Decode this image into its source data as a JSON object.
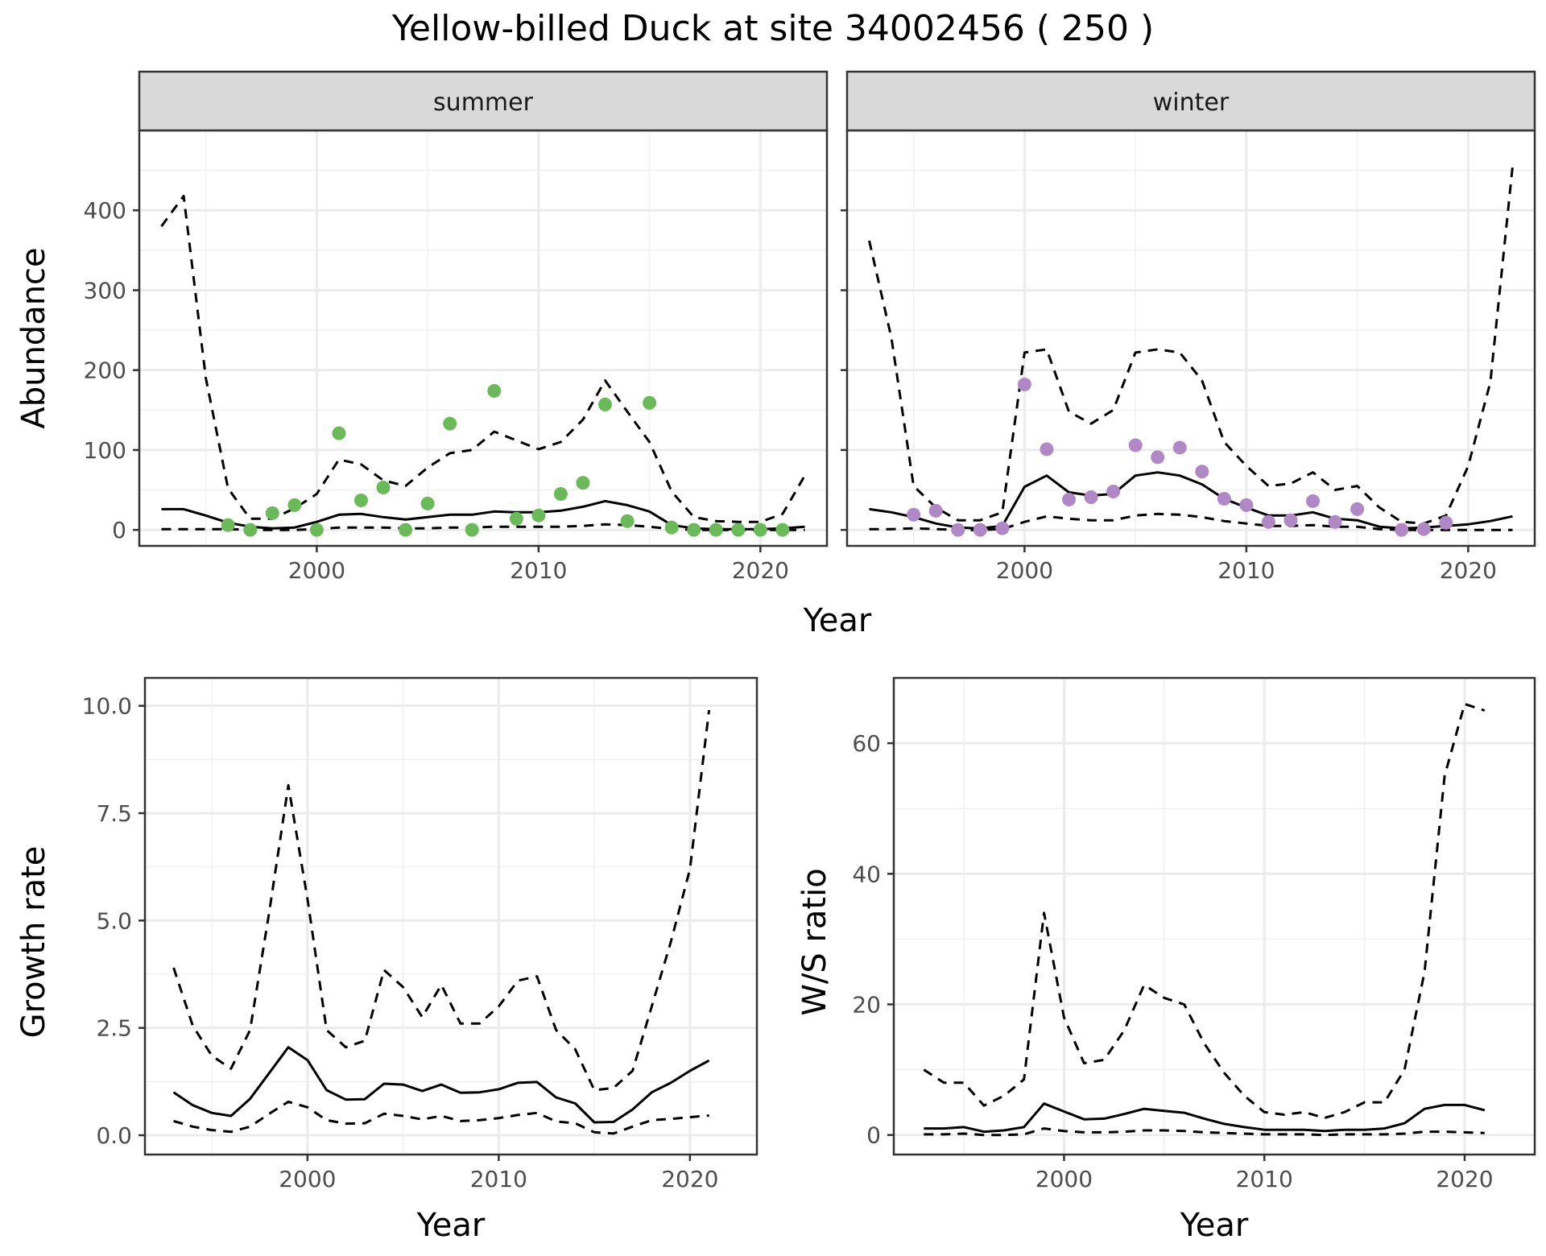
{
  "title": "Yellow-billed Duck at site 34002456 ( 250 )",
  "colors": {
    "summer": "#6aba5a",
    "winter": "#b088c6",
    "line": "#000000"
  },
  "chart_data": [
    {
      "type": "line",
      "panel": "summer",
      "facet_label": "summer",
      "xlabel": "Year",
      "ylabel": "Abundance",
      "xlim": [
        1992,
        2023
      ],
      "ylim": [
        -20,
        500
      ],
      "x_ticks": [
        2000,
        2010,
        2020
      ],
      "x_tick_labels": [
        "2000",
        "2010",
        "2020"
      ],
      "y_ticks": [
        0,
        100,
        200,
        300,
        400
      ],
      "y_tick_labels": [
        "0",
        "100",
        "200",
        "300",
        "400"
      ],
      "series": [
        {
          "name": "fit",
          "style": "solid",
          "x": [
            1993,
            1994,
            1995,
            1996,
            1997,
            1998,
            1999,
            2000,
            2001,
            2002,
            2003,
            2004,
            2005,
            2006,
            2007,
            2008,
            2009,
            2010,
            2011,
            2012,
            2013,
            2014,
            2015,
            2016,
            2017,
            2018,
            2019,
            2020,
            2021,
            2022
          ],
          "y": [
            26,
            26,
            18,
            9,
            4,
            2,
            3,
            10,
            19,
            20,
            16,
            13,
            16,
            19,
            19,
            23,
            22,
            22,
            24,
            29,
            36,
            31,
            23,
            6,
            2,
            1,
            1,
            1,
            2,
            4
          ]
        },
        {
          "name": "upper",
          "style": "dashed",
          "x": [
            1993,
            1994,
            1995,
            1996,
            1997,
            1998,
            1999,
            2000,
            2001,
            2002,
            2003,
            2004,
            2005,
            2006,
            2007,
            2008,
            2009,
            2010,
            2011,
            2012,
            2013,
            2014,
            2015,
            2016,
            2017,
            2018,
            2019,
            2020,
            2021,
            2022
          ],
          "y": [
            380,
            418,
            190,
            52,
            14,
            14,
            27,
            45,
            88,
            82,
            62,
            55,
            78,
            96,
            100,
            123,
            112,
            101,
            110,
            138,
            187,
            148,
            110,
            48,
            16,
            11,
            10,
            10,
            20,
            68
          ]
        },
        {
          "name": "lower",
          "style": "dashed",
          "x": [
            1993,
            1994,
            1995,
            1996,
            1997,
            1998,
            1999,
            2000,
            2001,
            2002,
            2003,
            2004,
            2005,
            2006,
            2007,
            2008,
            2009,
            2010,
            2011,
            2012,
            2013,
            2014,
            2015,
            2016,
            2017,
            2018,
            2019,
            2020,
            2021,
            2022
          ],
          "y": [
            1,
            1,
            1,
            1,
            0,
            0,
            0,
            1,
            3,
            3,
            3,
            2,
            2,
            3,
            3,
            4,
            4,
            4,
            4,
            5,
            7,
            6,
            4,
            1,
            0,
            0,
            0,
            0,
            0,
            0
          ]
        },
        {
          "name": "observed",
          "style": "points",
          "color": "#6aba5a",
          "x": [
            1996,
            1997,
            1998,
            1999,
            2000,
            2001,
            2002,
            2003,
            2004,
            2005,
            2006,
            2007,
            2008,
            2009,
            2010,
            2011,
            2012,
            2013,
            2014,
            2015,
            2016,
            2017,
            2018,
            2019,
            2020,
            2021
          ],
          "y": [
            6,
            0,
            21,
            31,
            0,
            121,
            37,
            53,
            0,
            33,
            133,
            0,
            174,
            14,
            18,
            45,
            59,
            157,
            11,
            159,
            3,
            0,
            0,
            0,
            0,
            0
          ]
        }
      ]
    },
    {
      "type": "line",
      "panel": "winter",
      "facet_label": "winter",
      "xlabel": "Year",
      "ylabel": "Abundance",
      "xlim": [
        1992,
        2023
      ],
      "ylim": [
        -20,
        500
      ],
      "x_ticks": [
        2000,
        2010,
        2020
      ],
      "x_tick_labels": [
        "2000",
        "2010",
        "2020"
      ],
      "y_ticks": [
        0,
        100,
        200,
        300,
        400
      ],
      "y_tick_labels": [],
      "series": [
        {
          "name": "fit",
          "style": "solid",
          "x": [
            1993,
            1994,
            1995,
            1996,
            1997,
            1998,
            1999,
            2000,
            2001,
            2002,
            2003,
            2004,
            2005,
            2006,
            2007,
            2008,
            2009,
            2010,
            2011,
            2012,
            2013,
            2014,
            2015,
            2016,
            2017,
            2018,
            2019,
            2020,
            2021,
            2022
          ],
          "y": [
            26,
            22,
            16,
            8,
            3,
            2,
            5,
            54,
            68,
            47,
            43,
            45,
            68,
            72,
            68,
            57,
            39,
            28,
            18,
            18,
            22,
            14,
            12,
            4,
            2,
            3,
            5,
            7,
            11,
            17
          ]
        },
        {
          "name": "upper",
          "style": "dashed",
          "x": [
            1993,
            1994,
            1995,
            1996,
            1997,
            1998,
            1999,
            2000,
            2001,
            2002,
            2003,
            2004,
            2005,
            2006,
            2007,
            2008,
            2009,
            2010,
            2011,
            2012,
            2013,
            2014,
            2015,
            2016,
            2017,
            2018,
            2019,
            2020,
            2021,
            2022
          ],
          "y": [
            362,
            240,
            55,
            28,
            12,
            12,
            22,
            222,
            226,
            148,
            133,
            150,
            222,
            226,
            222,
            187,
            110,
            80,
            55,
            58,
            72,
            50,
            55,
            28,
            10,
            8,
            18,
            80,
            185,
            455
          ]
        },
        {
          "name": "lower",
          "style": "dashed",
          "x": [
            1993,
            1994,
            1995,
            1996,
            1997,
            1998,
            1999,
            2000,
            2001,
            2002,
            2003,
            2004,
            2005,
            2006,
            2007,
            2008,
            2009,
            2010,
            2011,
            2012,
            2013,
            2014,
            2015,
            2016,
            2017,
            2018,
            2019,
            2020,
            2021,
            2022
          ],
          "y": [
            1,
            1,
            2,
            1,
            0,
            0,
            1,
            10,
            17,
            14,
            12,
            12,
            18,
            20,
            19,
            16,
            11,
            8,
            5,
            5,
            6,
            4,
            4,
            1,
            0,
            0,
            0,
            0,
            0,
            0
          ]
        },
        {
          "name": "observed",
          "style": "points",
          "color": "#b088c6",
          "x": [
            1995,
            1996,
            1997,
            1998,
            1999,
            2000,
            2001,
            2002,
            2003,
            2004,
            2005,
            2006,
            2007,
            2008,
            2009,
            2010,
            2011,
            2012,
            2013,
            2014,
            2015,
            2017,
            2018,
            2019
          ],
          "y": [
            19,
            24,
            0,
            0,
            2,
            182,
            101,
            38,
            41,
            48,
            106,
            91,
            103,
            73,
            39,
            31,
            10,
            12,
            36,
            10,
            26,
            0,
            1,
            9
          ]
        }
      ]
    },
    {
      "type": "line",
      "panel": "growth",
      "xlabel": "Year",
      "ylabel": "Growth rate",
      "xlim": [
        1991.5,
        2023.5
      ],
      "ylim": [
        -0.45,
        10.65
      ],
      "x_ticks": [
        2000,
        2010,
        2020
      ],
      "x_tick_labels": [
        "2000",
        "2010",
        "2020"
      ],
      "y_ticks": [
        0,
        2.5,
        5,
        7.5,
        10
      ],
      "y_tick_labels": [
        "0.0",
        "2.5",
        "5.0",
        "7.5",
        "10.0"
      ],
      "series": [
        {
          "name": "fit",
          "style": "solid",
          "x": [
            1993,
            1994,
            1995,
            1996,
            1997,
            1998,
            1999,
            2000,
            2001,
            2002,
            2003,
            2004,
            2005,
            2006,
            2007,
            2008,
            2009,
            2010,
            2011,
            2012,
            2013,
            2014,
            2015,
            2016,
            2017,
            2018,
            2019,
            2020,
            2021
          ],
          "y": [
            1.0,
            0.7,
            0.52,
            0.45,
            0.85,
            1.45,
            2.05,
            1.75,
            1.05,
            0.83,
            0.84,
            1.2,
            1.18,
            1.03,
            1.18,
            0.99,
            1.0,
            1.07,
            1.22,
            1.24,
            0.88,
            0.74,
            0.3,
            0.31,
            0.6,
            1.0,
            1.22,
            1.5,
            1.74
          ]
        },
        {
          "name": "upper",
          "style": "dashed",
          "x": [
            1993,
            1994,
            1995,
            1996,
            1997,
            1998,
            1999,
            2000,
            2001,
            2002,
            2003,
            2004,
            2005,
            2006,
            2007,
            2008,
            2009,
            2010,
            2011,
            2012,
            2013,
            2014,
            2015,
            2016,
            2017,
            2018,
            2019,
            2020,
            2021
          ],
          "y": [
            3.9,
            2.55,
            1.85,
            1.55,
            2.45,
            5.2,
            8.15,
            5.5,
            2.45,
            2.05,
            2.2,
            3.85,
            3.45,
            2.75,
            3.5,
            2.6,
            2.6,
            3.0,
            3.6,
            3.7,
            2.45,
            2.0,
            1.05,
            1.1,
            1.5,
            3.0,
            4.5,
            6.2,
            9.9
          ]
        },
        {
          "name": "lower",
          "style": "dashed",
          "x": [
            1993,
            1994,
            1995,
            1996,
            1997,
            1998,
            1999,
            2000,
            2001,
            2002,
            2003,
            2004,
            2005,
            2006,
            2007,
            2008,
            2009,
            2010,
            2011,
            2012,
            2013,
            2014,
            2015,
            2016,
            2017,
            2018,
            2019,
            2020,
            2021
          ],
          "y": [
            0.33,
            0.2,
            0.12,
            0.08,
            0.2,
            0.5,
            0.78,
            0.65,
            0.35,
            0.27,
            0.28,
            0.5,
            0.45,
            0.37,
            0.45,
            0.33,
            0.35,
            0.4,
            0.47,
            0.52,
            0.32,
            0.28,
            0.07,
            0.04,
            0.2,
            0.35,
            0.38,
            0.42,
            0.46
          ]
        }
      ]
    },
    {
      "type": "line",
      "panel": "ratio",
      "xlabel": "Year",
      "ylabel": "W/S ratio",
      "xlim": [
        1991.5,
        2023.5
      ],
      "ylim": [
        -3,
        70
      ],
      "x_ticks": [
        2000,
        2010,
        2020
      ],
      "x_tick_labels": [
        "2000",
        "2010",
        "2020"
      ],
      "y_ticks": [
        0,
        20,
        40,
        60
      ],
      "y_tick_labels": [
        "0",
        "20",
        "40",
        "60"
      ],
      "series": [
        {
          "name": "fit",
          "style": "solid",
          "x": [
            1993,
            1994,
            1995,
            1996,
            1997,
            1998,
            1999,
            2000,
            2001,
            2002,
            2003,
            2004,
            2005,
            2006,
            2007,
            2008,
            2009,
            2010,
            2011,
            2012,
            2013,
            2014,
            2015,
            2016,
            2017,
            2018,
            2019,
            2020,
            2021
          ],
          "y": [
            1.0,
            1.0,
            1.2,
            0.5,
            0.7,
            1.2,
            4.8,
            3.6,
            2.4,
            2.5,
            3.2,
            4.0,
            3.7,
            3.4,
            2.5,
            1.7,
            1.2,
            0.8,
            0.8,
            0.8,
            0.6,
            0.8,
            0.8,
            1.0,
            1.8,
            4.0,
            4.6,
            4.6,
            3.8
          ]
        },
        {
          "name": "upper",
          "style": "dashed",
          "x": [
            1993,
            1994,
            1995,
            1996,
            1997,
            1998,
            1999,
            2000,
            2001,
            2002,
            2003,
            2004,
            2005,
            2006,
            2007,
            2008,
            2009,
            2010,
            2011,
            2012,
            2013,
            2014,
            2015,
            2016,
            2017,
            2018,
            2019,
            2020,
            2021
          ],
          "y": [
            10,
            8,
            8,
            4.5,
            6,
            8.5,
            34,
            18,
            11,
            11.5,
            16,
            23,
            21,
            20,
            14,
            9.5,
            6,
            3.5,
            3.1,
            3.5,
            2.6,
            3.5,
            5,
            5,
            10,
            25,
            55,
            66,
            65
          ]
        },
        {
          "name": "lower",
          "style": "dashed",
          "x": [
            1993,
            1994,
            1995,
            1996,
            1997,
            1998,
            1999,
            2000,
            2001,
            2002,
            2003,
            2004,
            2005,
            2006,
            2007,
            2008,
            2009,
            2010,
            2011,
            2012,
            2013,
            2014,
            2015,
            2016,
            2017,
            2018,
            2019,
            2020,
            2021
          ],
          "y": [
            0.1,
            0.1,
            0.2,
            0.0,
            0.0,
            0.1,
            1.0,
            0.6,
            0.4,
            0.4,
            0.5,
            0.7,
            0.7,
            0.6,
            0.4,
            0.3,
            0.2,
            0.1,
            0.1,
            0.1,
            0.0,
            0.1,
            0.1,
            0.1,
            0.2,
            0.5,
            0.5,
            0.4,
            0.3
          ]
        }
      ]
    }
  ]
}
